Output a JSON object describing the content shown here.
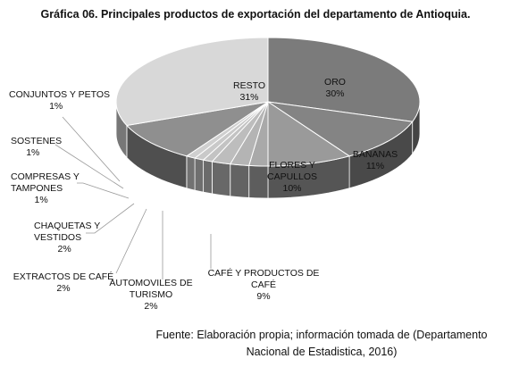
{
  "chart_data": {
    "type": "pie",
    "title": "Gráfica 06. Principales productos de exportación del departamento de Antioquia.",
    "slices": [
      {
        "label": "ORO",
        "value": 30,
        "display": "30%",
        "color": "#7b7b7b"
      },
      {
        "label": "BANANAS",
        "value": 11,
        "display": "11%",
        "color": "#848484"
      },
      {
        "label": "CAFÉ Y PRODUCTOS DE CAFÉ",
        "value": 9,
        "display": "9%",
        "color": "#9a9a9a"
      },
      {
        "label": "AUTOMOVILES DE TURISMO",
        "value": 2,
        "display": "2%",
        "color": "#a9a9a9"
      },
      {
        "label": "EXTRACTOS DE CAFÉ",
        "value": 2,
        "display": "2%",
        "color": "#b4b4b4"
      },
      {
        "label": "CHAQUETAS Y VESTIDOS",
        "value": 2,
        "display": "2%",
        "color": "#bdbdbd"
      },
      {
        "label": "COMPRESAS Y TAMPONES",
        "value": 1,
        "display": "1%",
        "color": "#c3c3c3"
      },
      {
        "label": "SOSTENES",
        "value": 1,
        "display": "1%",
        "color": "#c9c9c9"
      },
      {
        "label": "CONJUNTOS Y PETOS",
        "value": 1,
        "display": "1%",
        "color": "#cfcfcf"
      },
      {
        "label": "FLORES Y CAPULLOS",
        "value": 10,
        "display": "10%",
        "color": "#8f8f8f"
      },
      {
        "label": "RESTO",
        "value": 31,
        "display": "31%",
        "color": "#d8d8d8"
      }
    ]
  },
  "source": "Fuente: Elaboración propia; información tomada de (Departamento Nacional de Estadistica, 2016)"
}
